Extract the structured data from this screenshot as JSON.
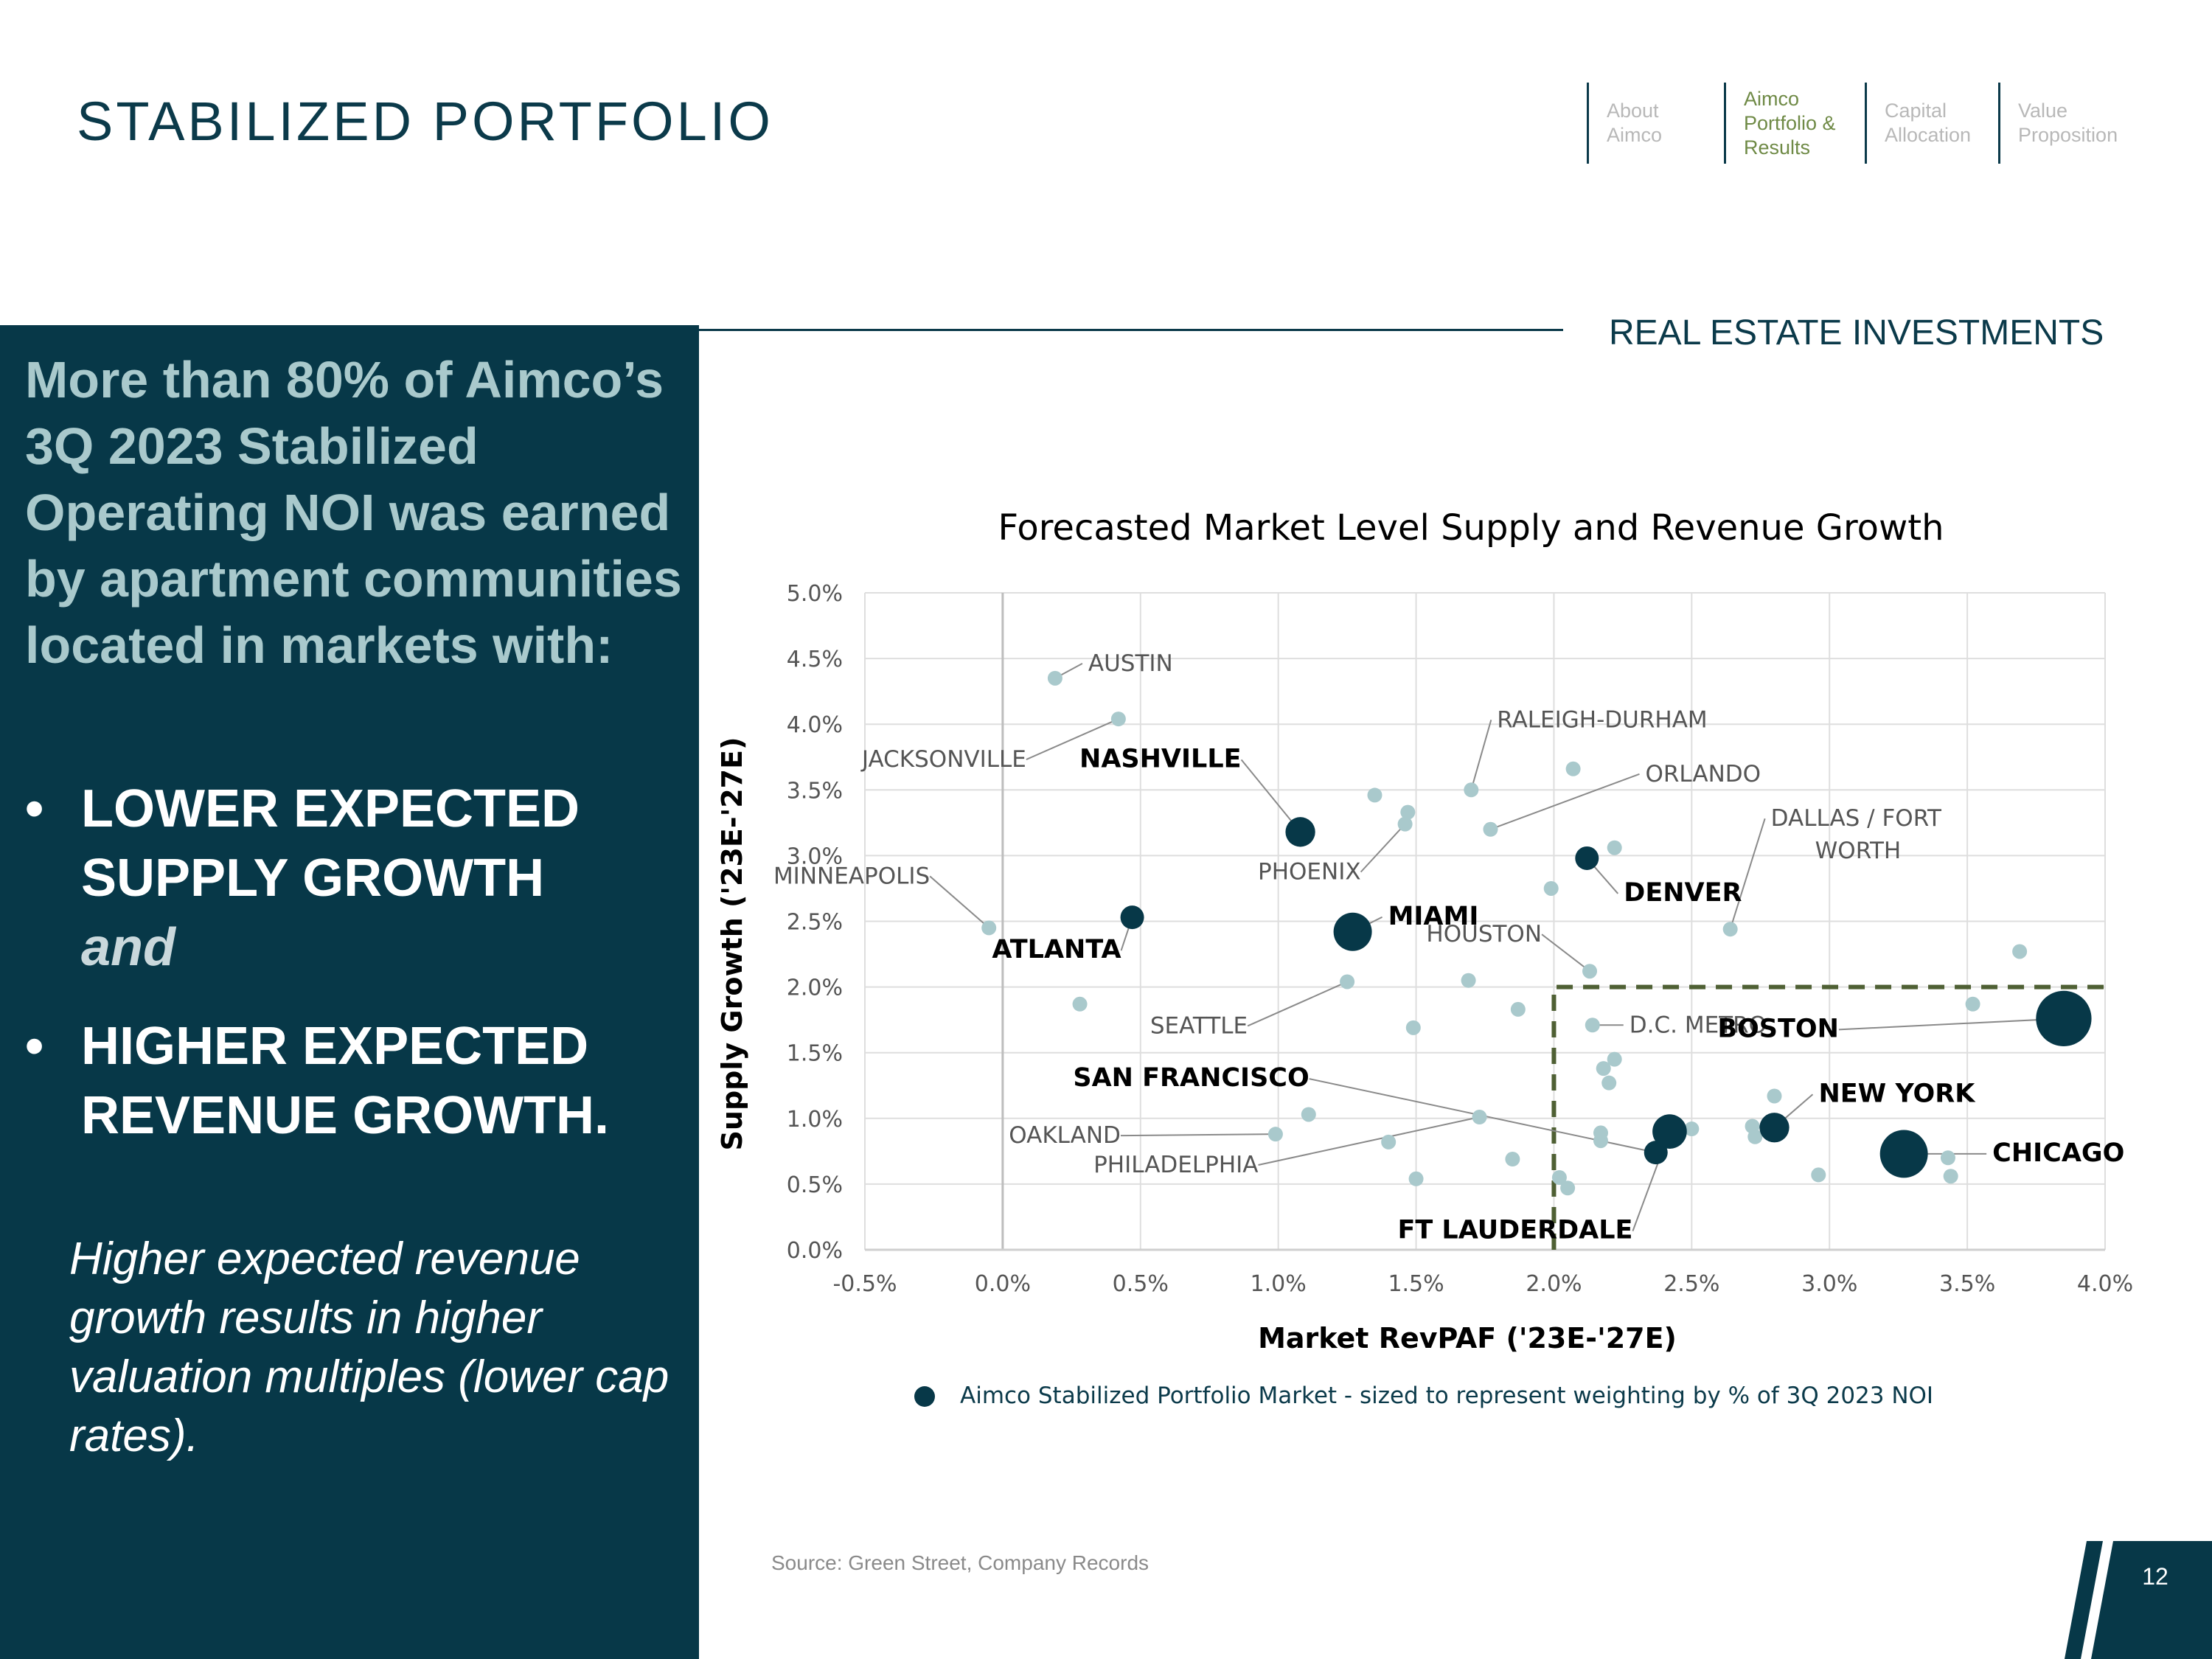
{
  "header": {
    "title": "STABILIZED PORTFOLIO"
  },
  "nav": [
    {
      "label": "About\nAimco",
      "active": false
    },
    {
      "label": "Aimco\nPortfolio &\nResults",
      "active": true
    },
    {
      "label": "Capital\nAllocation",
      "active": false
    },
    {
      "label": "Value\nProposition",
      "active": false
    }
  ],
  "section_label": "REAL ESTATE INVESTMENTS",
  "left_panel": {
    "lead": "More than 80% of Aimco’s 3Q 2023 Stabilized Operating NOI was earned by apartment communities located in markets with:",
    "bullet_dot": "•",
    "bullet1": "LOWER EXPECTED SUPPLY GROWTH",
    "bullet1_and": "and",
    "bullet2": "HIGHER EXPECTED REVENUE GROWTH.",
    "footnote": "Higher expected revenue growth results in higher valuation multiples (lower cap rates)."
  },
  "source": "Source: Green Street, Company Records",
  "page_number": "12",
  "colors": {
    "dark": "#073848",
    "light_point": "#a9c9cc",
    "accent_green": "#4f6034",
    "nav_active": "#6f8a46"
  },
  "chart_data": {
    "type": "scatter",
    "title": "Forecasted Market Level Supply and Revenue Growth",
    "xlabel": "Market RevPAF ('23E-'27E)",
    "ylabel": "Supply Growth ('23E-'27E)",
    "xlim": [
      -0.5,
      4.0
    ],
    "ylim": [
      0.0,
      5.0
    ],
    "xticks": [
      "-0.5%",
      "0.0%",
      "0.5%",
      "1.0%",
      "1.5%",
      "2.0%",
      "2.5%",
      "3.0%",
      "3.5%",
      "4.0%"
    ],
    "yticks": [
      "0.0%",
      "0.5%",
      "1.0%",
      "1.5%",
      "2.0%",
      "2.5%",
      "3.0%",
      "3.5%",
      "4.0%",
      "4.5%",
      "5.0%"
    ],
    "grid": true,
    "legend": "Aimco Stabilized Portfolio Market - sized to represent weighting by % of 3Q 2023 NOI",
    "threshold_box": {
      "x_min": 2.0,
      "y_max": 2.0
    },
    "aimco_markets": [
      {
        "name": "NASHVILLE",
        "x": 1.08,
        "y": 3.18,
        "weight": 2
      },
      {
        "name": "ATLANTA",
        "x": 0.47,
        "y": 2.53,
        "weight": 1
      },
      {
        "name": "MIAMI",
        "x": 1.27,
        "y": 2.42,
        "weight": 4
      },
      {
        "name": "DENVER",
        "x": 2.12,
        "y": 2.98,
        "weight": 1
      },
      {
        "name": "SAN FRANCISCO",
        "x": 2.37,
        "y": 0.74,
        "weight": 1
      },
      {
        "name": "FT LAUDERDALE",
        "x": 2.42,
        "y": 0.9,
        "weight": 3
      },
      {
        "name": "NEW YORK",
        "x": 2.8,
        "y": 0.93,
        "weight": 2
      },
      {
        "name": "CHICAGO",
        "x": 3.27,
        "y": 0.73,
        "weight": 7
      },
      {
        "name": "BOSTON",
        "x": 3.85,
        "y": 1.76,
        "weight": 10
      }
    ],
    "other_markets": [
      {
        "name": "AUSTIN",
        "x": 0.19,
        "y": 4.35
      },
      {
        "name": "JACKSONVILLE",
        "x": 0.42,
        "y": 4.04
      },
      {
        "name": "MINNEAPOLIS",
        "x": -0.05,
        "y": 2.45
      },
      {
        "name": "RALEIGH-DURHAM",
        "x": 1.7,
        "y": 3.5
      },
      {
        "name": "ORLANDO",
        "x": 1.77,
        "y": 3.2
      },
      {
        "name": "PHOENIX",
        "x": 1.46,
        "y": 3.24
      },
      {
        "name": "DALLAS / FORT WORTH",
        "x": 2.64,
        "y": 2.44
      },
      {
        "name": "HOUSTON",
        "x": 2.13,
        "y": 2.12
      },
      {
        "name": "SEATTLE",
        "x": 1.25,
        "y": 2.04
      },
      {
        "name": "D.C. METRO",
        "x": 2.14,
        "y": 1.71
      },
      {
        "name": "OAKLAND",
        "x": 0.99,
        "y": 0.88
      },
      {
        "name": "PHILADELPHIA",
        "x": 1.73,
        "y": 1.01
      },
      {
        "name": "",
        "x": 1.35,
        "y": 3.46
      },
      {
        "name": "",
        "x": 1.47,
        "y": 3.33
      },
      {
        "name": "",
        "x": 2.07,
        "y": 3.66
      },
      {
        "name": "",
        "x": 2.22,
        "y": 3.06
      },
      {
        "name": "",
        "x": 1.99,
        "y": 2.75
      },
      {
        "name": "",
        "x": 0.28,
        "y": 1.87
      },
      {
        "name": "",
        "x": 1.69,
        "y": 2.05
      },
      {
        "name": "",
        "x": 1.87,
        "y": 1.83
      },
      {
        "name": "",
        "x": 1.49,
        "y": 1.69
      },
      {
        "name": "",
        "x": 2.22,
        "y": 1.45
      },
      {
        "name": "",
        "x": 2.18,
        "y": 1.38
      },
      {
        "name": "",
        "x": 2.2,
        "y": 1.27
      },
      {
        "name": "",
        "x": 1.11,
        "y": 1.03
      },
      {
        "name": "",
        "x": 1.4,
        "y": 0.82
      },
      {
        "name": "",
        "x": 1.85,
        "y": 0.69
      },
      {
        "name": "",
        "x": 1.5,
        "y": 0.54
      },
      {
        "name": "",
        "x": 2.02,
        "y": 0.55
      },
      {
        "name": "",
        "x": 2.05,
        "y": 0.47
      },
      {
        "name": "",
        "x": 2.17,
        "y": 0.83
      },
      {
        "name": "",
        "x": 2.17,
        "y": 0.89
      },
      {
        "name": "",
        "x": 2.5,
        "y": 0.92
      },
      {
        "name": "",
        "x": 2.72,
        "y": 0.94
      },
      {
        "name": "",
        "x": 2.73,
        "y": 0.86
      },
      {
        "name": "",
        "x": 2.8,
        "y": 1.17
      },
      {
        "name": "",
        "x": 2.96,
        "y": 0.57
      },
      {
        "name": "",
        "x": 3.43,
        "y": 0.7
      },
      {
        "name": "",
        "x": 3.44,
        "y": 0.56
      },
      {
        "name": "",
        "x": 3.52,
        "y": 1.87
      },
      {
        "name": "",
        "x": 3.69,
        "y": 2.27
      }
    ]
  }
}
